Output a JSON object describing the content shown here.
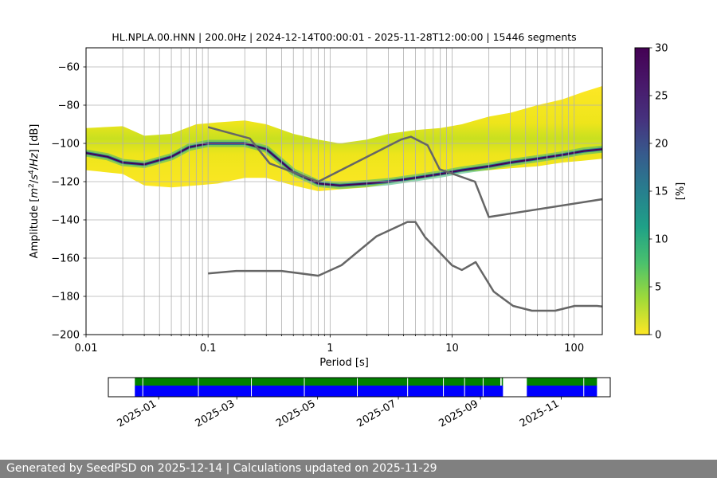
{
  "chart_data": {
    "type": "heatmap",
    "title": "HL.NPLA.00.HNN | 200.0Hz | 2024-12-14T00:00:01 - 2025-11-28T12:00:00 | 15446 segments",
    "xlabel": "Period [s]",
    "ylabel_parts": [
      "Amplitude [",
      "m",
      "2",
      "/",
      "s",
      "4",
      "/",
      "Hz",
      "] [dB]"
    ],
    "xscale": "log",
    "xlim": [
      0.01,
      170
    ],
    "ylim": [
      -200,
      -50
    ],
    "x_ticks": [
      {
        "value": 0.01,
        "label": "0.01"
      },
      {
        "value": 0.1,
        "label": "0.1"
      },
      {
        "value": 1,
        "label": "1"
      },
      {
        "value": 10,
        "label": "10"
      },
      {
        "value": 100,
        "label": "100"
      }
    ],
    "y_ticks": [
      {
        "value": -60,
        "label": "−60"
      },
      {
        "value": -80,
        "label": "−80"
      },
      {
        "value": -100,
        "label": "−100"
      },
      {
        "value": -120,
        "label": "−120"
      },
      {
        "value": -140,
        "label": "−140"
      },
      {
        "value": -160,
        "label": "−160"
      },
      {
        "value": -180,
        "label": "−180"
      },
      {
        "value": -200,
        "label": "−200"
      }
    ],
    "grid": true,
    "colorbar": {
      "label": "[%]",
      "range": [
        0,
        30
      ],
      "ticks": [
        {
          "value": 0,
          "label": "0"
        },
        {
          "value": 5,
          "label": "5"
        },
        {
          "value": 10,
          "label": "10"
        },
        {
          "value": 15,
          "label": "15"
        },
        {
          "value": 20,
          "label": "20"
        },
        {
          "value": 25,
          "label": "25"
        },
        {
          "value": 30,
          "label": "30"
        }
      ],
      "colormap": "viridis_r"
    },
    "pdf_mode": {
      "period": [
        0.01,
        0.015,
        0.02,
        0.03,
        0.05,
        0.07,
        0.1,
        0.2,
        0.3,
        0.5,
        0.8,
        1.2,
        2,
        3,
        5,
        8,
        12,
        20,
        30,
        50,
        80,
        120,
        170
      ],
      "db": [
        -105,
        -107,
        -110,
        -111,
        -107,
        -102,
        -100,
        -100,
        -103,
        -115,
        -121,
        -122,
        -121,
        -120,
        -118,
        -116,
        -114,
        -112,
        -110,
        -108,
        -106,
        -104,
        -103
      ]
    },
    "pdf_band": {
      "period": [
        0.01,
        0.02,
        0.03,
        0.05,
        0.08,
        0.12,
        0.2,
        0.3,
        0.5,
        0.8,
        1.2,
        2,
        3,
        5,
        8,
        12,
        20,
        30,
        50,
        80,
        120,
        170
      ],
      "upper_db": [
        -92,
        -91,
        -96,
        -95,
        -90,
        -89,
        -88,
        -90,
        -95,
        -98,
        -100,
        -98,
        -95,
        -93,
        -92,
        -90,
        -86,
        -84,
        -80,
        -77,
        -73,
        -70
      ],
      "lower_db": [
        -114,
        -116,
        -122,
        -123,
        -122,
        -121,
        -118,
        -118,
        -122,
        -125,
        -124,
        -123,
        -121,
        -119,
        -117,
        -115,
        -114,
        -113,
        -112,
        -110,
        -109,
        -108
      ]
    },
    "series": [
      {
        "kind": "NHNM",
        "color": "#666666",
        "points": [
          [
            0.1,
            -91.5
          ],
          [
            0.22,
            -97.4
          ],
          [
            0.32,
            -110.5
          ],
          [
            0.8,
            -120
          ],
          [
            3.8,
            -98
          ],
          [
            4.6,
            -96.5
          ],
          [
            6.3,
            -101
          ],
          [
            7.9,
            -113.5
          ],
          [
            15.4,
            -120
          ],
          [
            20,
            -138.5
          ],
          [
            354.8,
            -126
          ]
        ]
      },
      {
        "kind": "NLNM",
        "color": "#666666",
        "points": [
          [
            0.1,
            -168
          ],
          [
            0.17,
            -166.7
          ],
          [
            0.4,
            -166.7
          ],
          [
            0.8,
            -169.2
          ],
          [
            1.24,
            -163.7
          ],
          [
            2.4,
            -148.6
          ],
          [
            4.3,
            -141.1
          ],
          [
            5,
            -141.1
          ],
          [
            6,
            -149
          ],
          [
            10,
            -163.8
          ],
          [
            12,
            -166.2
          ],
          [
            15.6,
            -162.1
          ],
          [
            21.9,
            -177.5
          ],
          [
            31.6,
            -185
          ],
          [
            45,
            -187.5
          ],
          [
            70,
            -187.5
          ],
          [
            101,
            -185
          ],
          [
            154,
            -185
          ],
          [
            328,
            -187.5
          ]
        ]
      }
    ],
    "coverage_timeline": {
      "axis_start": "2024-11-24",
      "axis_end": "2025-12-08",
      "tick_labels": [
        {
          "date": "2025-01-01",
          "label": "2025-01"
        },
        {
          "date": "2025-03-01",
          "label": "2025-03"
        },
        {
          "date": "2025-05-01",
          "label": "2025-05"
        },
        {
          "date": "2025-07-01",
          "label": "2025-07"
        },
        {
          "date": "2025-09-01",
          "label": "2025-09"
        },
        {
          "date": "2025-11-01",
          "label": "2025-11"
        }
      ],
      "available_color": "#0000ff",
      "used_color": "#008000",
      "available_ranges": [
        [
          "2024-12-14",
          "2025-09-18"
        ],
        [
          "2025-10-06",
          "2025-11-28"
        ]
      ],
      "used_ranges": [
        [
          "2024-12-14",
          "2025-09-16"
        ],
        [
          "2025-09-17",
          "2025-09-18"
        ],
        [
          "2025-10-06",
          "2025-11-28"
        ]
      ],
      "gaps": [
        "2024-12-20",
        "2025-01-31",
        "2025-03-12",
        "2025-04-21",
        "2025-05-31",
        "2025-07-08",
        "2025-08-04",
        "2025-08-20",
        "2025-09-03",
        "2025-11-18"
      ]
    }
  },
  "footer": {
    "text": "Generated by SeedPSD on 2025-12-14 | Calculations updated on 2025-11-29"
  }
}
